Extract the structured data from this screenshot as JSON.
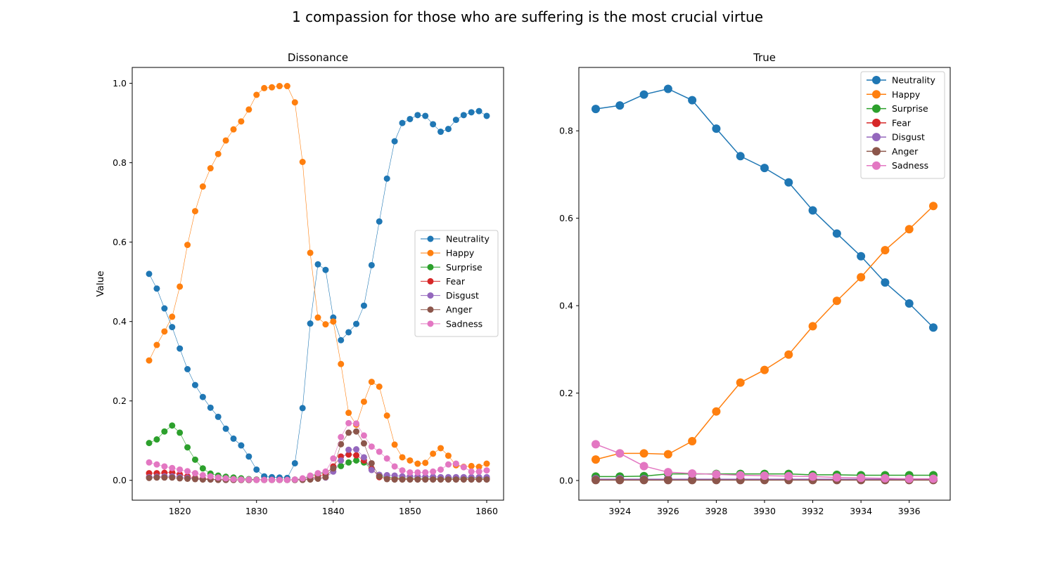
{
  "figure": {
    "suptitle": "1 compassion for those who are suffering is the most crucial virtue"
  },
  "colors": {
    "Neutrality": "#1f77b4",
    "Happy": "#ff7f0e",
    "Surprise": "#2ca02c",
    "Fear": "#d62728",
    "Disgust": "#9467bd",
    "Anger": "#8c564b",
    "Sadness": "#e377c2"
  },
  "chart_data": [
    {
      "type": "line",
      "title": "Dissonance",
      "xlabel": "",
      "ylabel": "Value",
      "xlim": [
        1813.8,
        1862.2
      ],
      "ylim": [
        -0.05,
        1.04
      ],
      "xticks": [
        1820,
        1830,
        1840,
        1850,
        1860
      ],
      "yticks": [
        0.0,
        0.2,
        0.4,
        0.6,
        0.8,
        1.0
      ],
      "legend": "center-right",
      "grid": false,
      "x": [
        1816,
        1817,
        1818,
        1819,
        1820,
        1821,
        1822,
        1823,
        1824,
        1825,
        1826,
        1827,
        1828,
        1829,
        1830,
        1831,
        1832,
        1833,
        1834,
        1835,
        1836,
        1837,
        1838,
        1839,
        1840,
        1841,
        1842,
        1843,
        1844,
        1845,
        1846,
        1847,
        1848,
        1849,
        1850,
        1851,
        1852,
        1853,
        1854,
        1855,
        1856,
        1857,
        1858,
        1859,
        1860
      ],
      "series": [
        {
          "name": "Neutrality",
          "values": [
            0.52,
            0.483,
            0.433,
            0.386,
            0.332,
            0.28,
            0.24,
            0.21,
            0.183,
            0.16,
            0.13,
            0.105,
            0.088,
            0.06,
            0.027,
            0.01,
            0.008,
            0.007,
            0.006,
            0.043,
            0.182,
            0.395,
            0.544,
            0.53,
            0.41,
            0.353,
            0.373,
            0.394,
            0.44,
            0.542,
            0.652,
            0.76,
            0.854,
            0.9,
            0.91,
            0.92,
            0.918,
            0.897,
            0.878,
            0.885,
            0.908,
            0.92,
            0.927,
            0.93,
            0.918
          ]
        },
        {
          "name": "Happy",
          "values": [
            0.302,
            0.341,
            0.375,
            0.412,
            0.488,
            0.593,
            0.678,
            0.74,
            0.786,
            0.822,
            0.856,
            0.884,
            0.904,
            0.934,
            0.971,
            0.988,
            0.99,
            0.993,
            0.993,
            0.952,
            0.802,
            0.573,
            0.41,
            0.393,
            0.4,
            0.293,
            0.17,
            0.14,
            0.198,
            0.248,
            0.236,
            0.163,
            0.09,
            0.058,
            0.05,
            0.042,
            0.044,
            0.067,
            0.081,
            0.062,
            0.038,
            0.034,
            0.036,
            0.034,
            0.042
          ]
        },
        {
          "name": "Surprise",
          "values": [
            0.094,
            0.103,
            0.123,
            0.138,
            0.12,
            0.083,
            0.052,
            0.03,
            0.017,
            0.012,
            0.009,
            0.007,
            0.005,
            0.003,
            0.002,
            0.001,
            0.001,
            0.001,
            0.001,
            0.002,
            0.004,
            0.01,
            0.016,
            0.02,
            0.03,
            0.036,
            0.045,
            0.05,
            0.045,
            0.028,
            0.012,
            0.008,
            0.006,
            0.005,
            0.005,
            0.005,
            0.005,
            0.005,
            0.004,
            0.005,
            0.005,
            0.005,
            0.006,
            0.005,
            0.005
          ]
        },
        {
          "name": "Fear",
          "values": [
            0.018,
            0.018,
            0.019,
            0.02,
            0.015,
            0.01,
            0.006,
            0.004,
            0.003,
            0.002,
            0.002,
            0.001,
            0.001,
            0.001,
            0.001,
            0.001,
            0.001,
            0.001,
            0.001,
            0.001,
            0.002,
            0.005,
            0.01,
            0.015,
            0.035,
            0.06,
            0.065,
            0.063,
            0.05,
            0.03,
            0.008,
            0.005,
            0.004,
            0.003,
            0.003,
            0.003,
            0.003,
            0.003,
            0.003,
            0.003,
            0.003,
            0.003,
            0.003,
            0.003,
            0.003
          ]
        },
        {
          "name": "Disgust",
          "values": [
            0.008,
            0.009,
            0.01,
            0.01,
            0.008,
            0.006,
            0.004,
            0.003,
            0.002,
            0.002,
            0.001,
            0.001,
            0.001,
            0.001,
            0.001,
            0.001,
            0.001,
            0.001,
            0.001,
            0.001,
            0.002,
            0.004,
            0.005,
            0.007,
            0.022,
            0.05,
            0.077,
            0.078,
            0.058,
            0.026,
            0.014,
            0.013,
            0.012,
            0.01,
            0.01,
            0.01,
            0.009,
            0.009,
            0.008,
            0.008,
            0.008,
            0.008,
            0.008,
            0.008,
            0.008
          ]
        },
        {
          "name": "Anger",
          "values": [
            0.006,
            0.007,
            0.007,
            0.007,
            0.005,
            0.004,
            0.003,
            0.002,
            0.002,
            0.001,
            0.001,
            0.001,
            0.001,
            0.001,
            0.001,
            0.001,
            0.001,
            0.001,
            0.001,
            0.001,
            0.001,
            0.002,
            0.004,
            0.008,
            0.03,
            0.091,
            0.12,
            0.123,
            0.093,
            0.043,
            0.01,
            0.003,
            0.002,
            0.002,
            0.002,
            0.002,
            0.002,
            0.002,
            0.002,
            0.002,
            0.002,
            0.002,
            0.002,
            0.002,
            0.002
          ]
        },
        {
          "name": "Sadness",
          "values": [
            0.045,
            0.04,
            0.035,
            0.031,
            0.027,
            0.023,
            0.018,
            0.013,
            0.01,
            0.007,
            0.005,
            0.003,
            0.002,
            0.002,
            0.001,
            0.001,
            0.001,
            0.001,
            0.001,
            0.002,
            0.005,
            0.012,
            0.018,
            0.022,
            0.055,
            0.109,
            0.144,
            0.143,
            0.113,
            0.085,
            0.072,
            0.055,
            0.035,
            0.025,
            0.02,
            0.02,
            0.02,
            0.022,
            0.027,
            0.04,
            0.042,
            0.033,
            0.022,
            0.022,
            0.025
          ]
        }
      ]
    },
    {
      "type": "line",
      "title": "True",
      "xlabel": "",
      "ylabel": "",
      "xlim": [
        3922.3,
        3937.7
      ],
      "ylim": [
        -0.045,
        0.945
      ],
      "xticks": [
        3924,
        3926,
        3928,
        3930,
        3932,
        3934,
        3936
      ],
      "yticks": [
        0.0,
        0.2,
        0.4,
        0.6,
        0.8
      ],
      "legend": "top-right",
      "grid": false,
      "x": [
        3923,
        3924,
        3925,
        3926,
        3927,
        3928,
        3929,
        3930,
        3931,
        3932,
        3933,
        3934,
        3935,
        3936,
        3937
      ],
      "series": [
        {
          "name": "Neutrality",
          "values": [
            0.85,
            0.858,
            0.883,
            0.896,
            0.87,
            0.805,
            0.742,
            0.715,
            0.682,
            0.618,
            0.565,
            0.513,
            0.453,
            0.405,
            0.35
          ]
        },
        {
          "name": "Happy",
          "values": [
            0.048,
            0.062,
            0.062,
            0.06,
            0.09,
            0.158,
            0.224,
            0.253,
            0.288,
            0.353,
            0.411,
            0.465,
            0.527,
            0.575,
            0.628
          ]
        },
        {
          "name": "Surprise",
          "values": [
            0.009,
            0.009,
            0.01,
            0.015,
            0.015,
            0.015,
            0.015,
            0.015,
            0.015,
            0.013,
            0.013,
            0.012,
            0.012,
            0.012,
            0.012
          ]
        },
        {
          "name": "Fear",
          "values": [
            0.002,
            0.002,
            0.002,
            0.002,
            0.002,
            0.002,
            0.002,
            0.002,
            0.002,
            0.002,
            0.002,
            0.002,
            0.002,
            0.002,
            0.002
          ]
        },
        {
          "name": "Disgust",
          "values": [
            0.003,
            0.003,
            0.003,
            0.003,
            0.003,
            0.003,
            0.003,
            0.003,
            0.003,
            0.003,
            0.003,
            0.003,
            0.003,
            0.003,
            0.003
          ]
        },
        {
          "name": "Anger",
          "values": [
            0.001,
            0.001,
            0.001,
            0.001,
            0.001,
            0.001,
            0.001,
            0.001,
            0.001,
            0.001,
            0.001,
            0.001,
            0.001,
            0.001,
            0.001
          ]
        },
        {
          "name": "Sadness",
          "values": [
            0.083,
            0.062,
            0.033,
            0.019,
            0.016,
            0.014,
            0.012,
            0.011,
            0.01,
            0.009,
            0.007,
            0.006,
            0.005,
            0.004,
            0.004
          ]
        }
      ]
    }
  ]
}
